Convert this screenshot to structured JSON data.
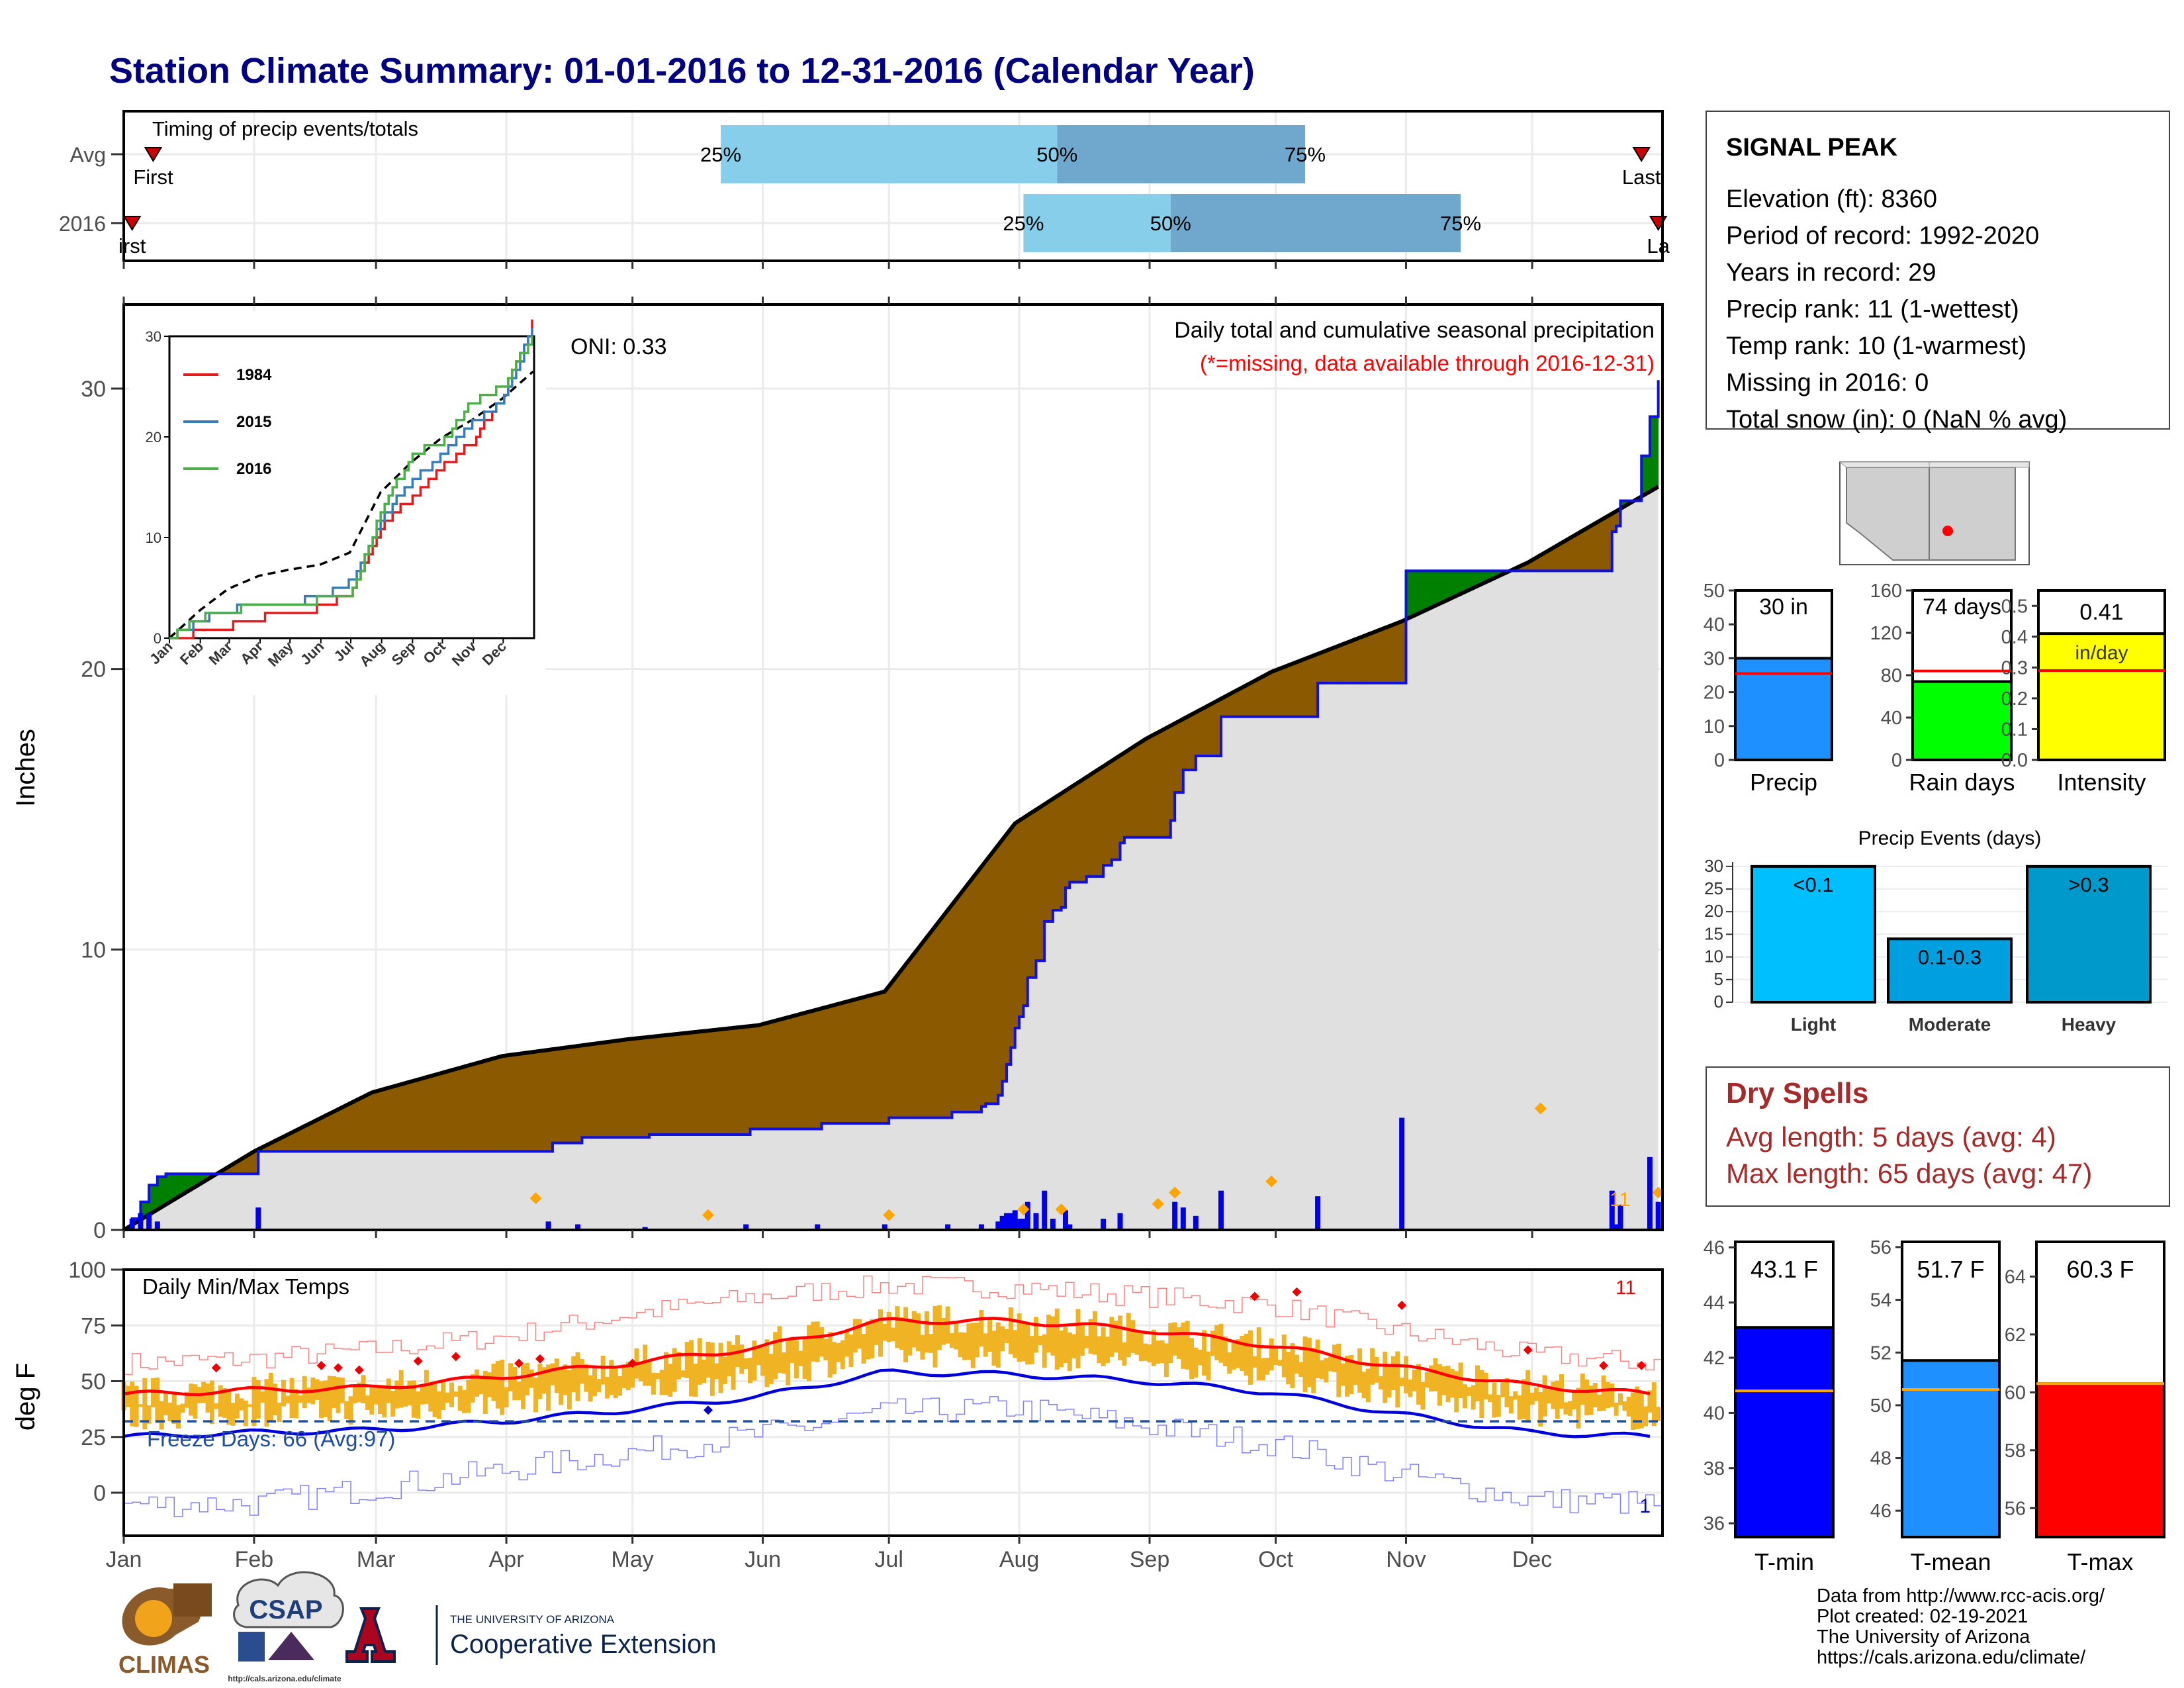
{
  "title": "Station Climate Summary: 01-01-2016 to 12-31-2016 (Calendar Year)",
  "months": [
    "Jan",
    "Feb",
    "Mar",
    "Apr",
    "May",
    "Jun",
    "Jul",
    "Aug",
    "Sep",
    "Oct",
    "Nov",
    "Dec"
  ],
  "colors": {
    "title": "#000080",
    "green": "#008000",
    "brown": "#8B5A00",
    "cum_current": "#1010e0",
    "gray_fill": "#e0e0e0",
    "timing_light": "#87CEEB",
    "timing_dark": "#6fa8cc",
    "precip_bar": "#1E90FF",
    "rain_days_bar": "#00FF00",
    "intensity_bar": "#FFFF00",
    "light_events": "#00BFFF",
    "moderate_events": "#00A0E0",
    "heavy_events": "#0099CC",
    "tmin_bar": "#0000FF",
    "tmean_bar": "#1E90FF",
    "tmax_bar": "#FF0000",
    "dry_spells_text": "#A52A2A",
    "temp_range": "#F0B323",
    "max_mean_line": "#FF0000",
    "min_mean_line": "#0000DD",
    "diamond_orange": "#FFA500",
    "missing_note": "#FF0000"
  },
  "timing": {
    "label": "Timing of precip events/totals",
    "rows": [
      "Avg",
      "2016"
    ],
    "avg": {
      "first_doy": 8,
      "p25_doy": 143,
      "p50_doy": 223,
      "p75_doy": 282,
      "last_doy": 362
    },
    "y2016": {
      "first_doy": 3,
      "p25_doy": 215,
      "p50_doy": 250,
      "p75_doy": 319,
      "last_doy": 366
    },
    "labels": {
      "first": "First",
      "last": "Last",
      "p25": "25%",
      "p50": "50%",
      "p75": "75%",
      "first_2016": "irst",
      "last_2016": "La"
    }
  },
  "precip_panel": {
    "ylabel": "Inches",
    "yticks": [
      0,
      10,
      20,
      30
    ],
    "ylim": [
      0,
      32
    ],
    "oni": "ONI: 0.33",
    "header": "Daily total and cumulative seasonal precipitation",
    "missing_note": "(*=missing, data available through 2016-12-31)",
    "corner_count": "11"
  },
  "inset": {
    "yticks": [
      0,
      10,
      20,
      30
    ],
    "months": [
      "Jan",
      "Feb",
      "Mar",
      "Apr",
      "May",
      "Jun",
      "Jul",
      "Aug",
      "Sep",
      "Oct",
      "Nov",
      "Dec"
    ],
    "legend": [
      {
        "name": "1984",
        "color": "#e41a1c"
      },
      {
        "name": "2015",
        "color": "#377eb8"
      },
      {
        "name": "2016",
        "color": "#4daf4a"
      }
    ]
  },
  "chart_data": {
    "type": "area",
    "title": "Daily total and cumulative seasonal precipitation",
    "ylabel": "Inches",
    "ylim": [
      0,
      32
    ],
    "cumulative_avg": {
      "doy": [
        1,
        32,
        60,
        91,
        121,
        152,
        182,
        213,
        244,
        274,
        305,
        335,
        366
      ],
      "values": [
        0,
        2.8,
        4.9,
        6.2,
        6.8,
        7.3,
        8.5,
        14.5,
        17.5,
        19.9,
        21.7,
        23.8,
        26.5
      ]
    },
    "cumulative_2016": {
      "doy": [
        1,
        3,
        5,
        7,
        9,
        11,
        13,
        32,
        33,
        102,
        103,
        109,
        110,
        125,
        126,
        149,
        150,
        166,
        167,
        182,
        183,
        197,
        198,
        205,
        206,
        209,
        210,
        211,
        212,
        213,
        214,
        215,
        216,
        218,
        220,
        222,
        224,
        225,
        226,
        230,
        234,
        236,
        238,
        239,
        250,
        251,
        253,
        256,
        262,
        263,
        284,
        285,
        305,
        306,
        340,
        355,
        356,
        357,
        362,
        364,
        365,
        366
      ],
      "values": [
        0,
        0.4,
        1.0,
        1.6,
        1.9,
        2.0,
        2.0,
        2.0,
        2.8,
        2.8,
        3.1,
        3.1,
        3.3,
        3.3,
        3.4,
        3.4,
        3.6,
        3.6,
        3.8,
        3.8,
        4.0,
        4.0,
        4.2,
        4.4,
        4.5,
        4.8,
        5.3,
        5.9,
        6.5,
        7.2,
        7.6,
        8.0,
        9.0,
        9.6,
        11.0,
        11.4,
        11.5,
        12.2,
        12.4,
        12.6,
        13.0,
        13.2,
        13.8,
        14.0,
        14.6,
        15.6,
        16.4,
        16.9,
        18.3,
        18.3,
        18.3,
        19.5,
        19.5,
        23.5,
        23.5,
        24.9,
        25.1,
        26.0,
        27.6,
        29.0,
        29.0,
        30.3
      ]
    },
    "daily_2016": {
      "doy": [
        3,
        5,
        7,
        9,
        33,
        102,
        109,
        125,
        149,
        166,
        182,
        197,
        205,
        209,
        210,
        211,
        212,
        213,
        214,
        215,
        216,
        218,
        220,
        222,
        225,
        226,
        234,
        238,
        251,
        253,
        256,
        262,
        285,
        305,
        355,
        356,
        357,
        364,
        366
      ],
      "values": [
        0.4,
        0.6,
        0.6,
        0.3,
        0.8,
        0.3,
        0.2,
        0.1,
        0.2,
        0.2,
        0.2,
        0.2,
        0.2,
        0.3,
        0.5,
        0.6,
        0.6,
        0.7,
        0.4,
        0.4,
        1.0,
        0.6,
        1.4,
        0.4,
        0.7,
        0.2,
        0.4,
        0.6,
        1.0,
        0.8,
        0.5,
        1.4,
        1.2,
        4.0,
        1.4,
        0.2,
        0.9,
        2.6,
        1.0
      ]
    },
    "event_markers_doy": [
      99,
      140,
      183,
      215,
      224,
      247,
      251,
      274,
      338,
      366
    ]
  },
  "inset_data": {
    "doy_axis": [
      1,
      32,
      60,
      91,
      121,
      152,
      182,
      213,
      244,
      274,
      305,
      335,
      366
    ],
    "avg": [
      0,
      2.8,
      4.9,
      6.2,
      6.8,
      7.3,
      8.5,
      14.5,
      17.5,
      19.9,
      21.7,
      23.8,
      26.5
    ],
    "s1984": [
      0,
      0.6,
      1.2,
      2.0,
      2.5,
      3.0,
      4.5,
      11.0,
      14.0,
      17.0,
      19.5,
      24.0,
      31.5
    ],
    "s2015": [
      0,
      1.8,
      2.8,
      3.3,
      3.5,
      4.0,
      5.5,
      12.0,
      15.5,
      18.0,
      21.5,
      23.5,
      31.0
    ],
    "s2016": [
      0,
      2.0,
      2.8,
      3.1,
      3.4,
      3.8,
      4.0,
      12.4,
      18.3,
      19.5,
      23.5,
      24.9,
      30.3
    ]
  },
  "temp_panel": {
    "ylabel": "deg F",
    "label": "Daily Min/Max Temps",
    "yticks": [
      0,
      25,
      50,
      75,
      100
    ],
    "ylim": [
      -15,
      100
    ],
    "freeze_days": "Freeze Days: 66 (Avg:97)",
    "freeze_line": 32,
    "count_top": "11",
    "count_bottom": "1",
    "max_mean": {
      "doy": [
        1,
        32,
        60,
        91,
        121,
        152,
        182,
        213,
        244,
        274,
        305,
        335,
        366
      ],
      "values": [
        44,
        46,
        47,
        52,
        58,
        65,
        77,
        77,
        73,
        66,
        56,
        48,
        44
      ]
    },
    "min_mean": {
      "doy": [
        1,
        32,
        60,
        91,
        121,
        152,
        182,
        213,
        244,
        274,
        305,
        335,
        366
      ],
      "values": [
        25,
        27,
        28,
        32,
        37,
        43,
        54,
        53,
        50,
        45,
        35,
        27,
        25
      ]
    },
    "max_extreme": {
      "doy": [
        1,
        32,
        60,
        91,
        121,
        152,
        182,
        213,
        244,
        274,
        305,
        335,
        366
      ],
      "values": [
        58,
        60,
        64,
        70,
        80,
        88,
        93,
        92,
        88,
        84,
        72,
        62,
        58
      ]
    },
    "min_extreme": {
      "doy": [
        1,
        32,
        60,
        91,
        121,
        152,
        182,
        213,
        244,
        274,
        305,
        335,
        366
      ],
      "values": [
        -5,
        -5,
        2,
        10,
        18,
        26,
        36,
        38,
        30,
        22,
        8,
        -3,
        -5
      ]
    }
  },
  "station": {
    "name": "SIGNAL PEAK",
    "lines": [
      "Elevation (ft): 8360",
      "Period of record: 1992-2020",
      "Years in record: 29",
      "Precip rank: 11 (1-wettest)",
      "Temp rank: 10 (1-warmest)",
      "Missing in 2016: 0",
      "Total snow (in): 0 (NaN % avg)"
    ]
  },
  "summary_bars": [
    {
      "id": "precip",
      "label": "Precip",
      "value": 30,
      "avg": 25.5,
      "ylim": [
        0,
        50
      ],
      "yticks": [
        0,
        10,
        20,
        30,
        40,
        50
      ],
      "text": "30 in",
      "subtext": ""
    },
    {
      "id": "rain_days",
      "label": "Rain days",
      "value": 74,
      "avg": 84,
      "ylim": [
        0,
        160
      ],
      "yticks": [
        0,
        40,
        80,
        120,
        160
      ],
      "text": "74 days",
      "subtext": ""
    },
    {
      "id": "intensity",
      "label": "Intensity",
      "value": 0.41,
      "avg": 0.29,
      "ylim": [
        0,
        0.55
      ],
      "yticks": [
        0.0,
        0.1,
        0.2,
        0.3,
        0.4,
        0.5
      ],
      "text": "0.41",
      "subtext": "in/day"
    }
  ],
  "events": {
    "title": "Precip Events (days)",
    "yticks": [
      0,
      5,
      10,
      15,
      20,
      25,
      30
    ],
    "ylim": [
      0,
      31
    ],
    "bars": [
      {
        "label": "Light",
        "inner": "<0.1",
        "value": 30
      },
      {
        "label": "Moderate",
        "inner": "0.1-0.3",
        "value": 14
      },
      {
        "label": "Heavy",
        "inner": ">0.3",
        "value": 30
      }
    ]
  },
  "dry_spells": {
    "title": "Dry Spells",
    "line1": "Avg length: 5 days (avg: 4)",
    "line2": "Max length: 65 days (avg: 47)"
  },
  "temp_bars": [
    {
      "label": "T-min",
      "value": 43.1,
      "avg": 40.8,
      "ylim": [
        35.5,
        46.2
      ],
      "yticks": [
        36,
        38,
        40,
        42,
        44,
        46
      ],
      "text": "43.1 F"
    },
    {
      "label": "T-mean",
      "value": 51.7,
      "avg": 50.6,
      "ylim": [
        45,
        56.2
      ],
      "yticks": [
        46,
        48,
        50,
        52,
        54,
        56
      ],
      "text": "51.7 F"
    },
    {
      "label": "T-max",
      "value": 60.3,
      "avg": 60.3,
      "ylim": [
        55,
        65.2
      ],
      "yticks": [
        56,
        58,
        60,
        62,
        64
      ],
      "text": "60.3 F"
    }
  ],
  "footer": {
    "lines": [
      "Data from http://www.rcc-acis.org/",
      "Plot created: 02-19-2021",
      "The University of Arizona",
      "https://cals.arizona.edu/climate/"
    ],
    "climas": "CLIMAS",
    "csap": "CSAP",
    "csap_url": "http://cals.arizona.edu/climate",
    "ua_small": "THE UNIVERSITY OF ARIZONA",
    "ua_big": "Cooperative Extension"
  }
}
